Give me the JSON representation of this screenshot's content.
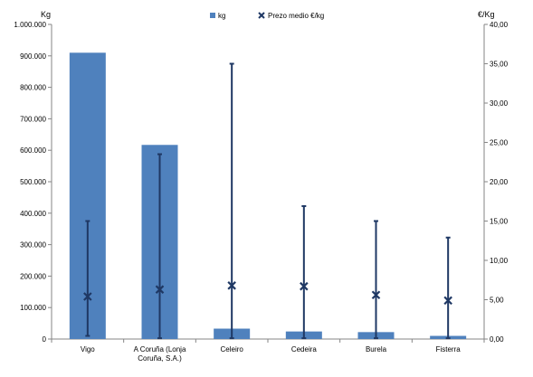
{
  "chart_data": {
    "type": "bar",
    "categories": [
      [
        "Vigo"
      ],
      [
        "A Coruña (Lonja",
        "Coruña, S.A.)"
      ],
      [
        "Celeiro"
      ],
      [
        "Cedeira"
      ],
      [
        "Burela"
      ],
      [
        "Fisterra"
      ]
    ],
    "series": [
      {
        "name": "kg",
        "type": "bar",
        "axis": "left",
        "values": [
          910000,
          617000,
          33000,
          24000,
          22000,
          10000
        ]
      },
      {
        "name": "Prezo medio €/kg",
        "type": "marker",
        "axis": "right",
        "values": [
          5.4,
          6.3,
          6.8,
          6.7,
          5.6,
          4.9
        ]
      }
    ],
    "range_bars": {
      "axis": "right",
      "low": [
        0.4,
        0.1,
        0.1,
        0.1,
        0.1,
        0.1
      ],
      "high": [
        15.0,
        23.5,
        35.0,
        16.9,
        15.0,
        12.9
      ]
    },
    "left_axis": {
      "unit": "Kg",
      "ylim": [
        0,
        1000000
      ],
      "ticks": [
        "0",
        "100.000",
        "200.000",
        "300.000",
        "400.000",
        "500.000",
        "600.000",
        "700.000",
        "800.000",
        "900.000",
        "1.000.000"
      ]
    },
    "right_axis": {
      "unit": "€/Kg",
      "ylim": [
        0,
        40
      ],
      "ticks": [
        "0,00",
        "5,00",
        "10,00",
        "15,00",
        "20,00",
        "25,00",
        "30,00",
        "35,00",
        "40,00"
      ]
    },
    "legend": {
      "position": "top",
      "items": [
        "kg",
        "Prezo medio €/kg"
      ]
    },
    "grid": false,
    "colors": {
      "bar": "#4f81bd",
      "line": "#1f3864"
    }
  }
}
